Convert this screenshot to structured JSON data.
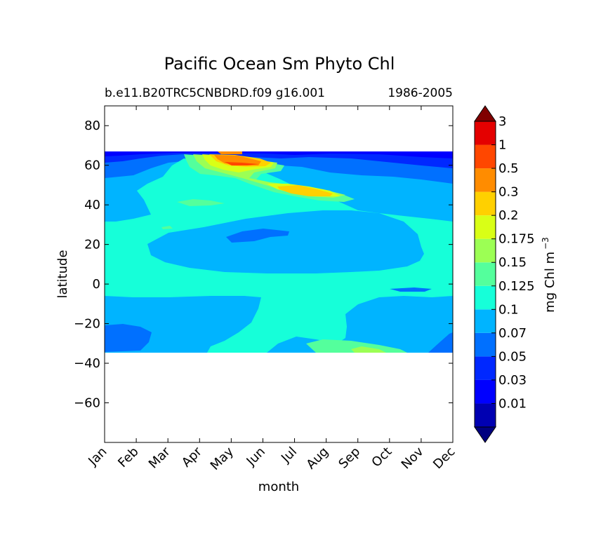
{
  "chart_data": {
    "type": "contour",
    "title": "Pacific Ocean Sm Phyto Chl",
    "subtitle_left": "b.e11.B20TRC5CNBDRD.f09 g16.001",
    "subtitle_right": "1986-2005",
    "xlabel": "month",
    "ylabel": "latitude",
    "x_ticks": [
      "Jan",
      "Feb",
      "Mar",
      "Apr",
      "May",
      "Jun",
      "Jul",
      "Aug",
      "Sep",
      "Oct",
      "Nov",
      "Dec"
    ],
    "y_ticks": [
      80,
      60,
      40,
      20,
      0,
      -20,
      -40,
      -60
    ],
    "y_tick_labels": [
      "80",
      "60",
      "40",
      "20",
      "0",
      "−20",
      "−40",
      "−60"
    ],
    "ylim": [
      -80,
      90
    ],
    "data_lat_range": [
      -34,
      67
    ],
    "colorbar": {
      "label": "mg Chl m",
      "label_exponent": "−3",
      "levels": [
        0.01,
        0.03,
        0.05,
        0.07,
        0.1,
        0.125,
        0.15,
        0.175,
        0.2,
        0.3,
        0.5,
        1,
        3
      ],
      "tick_labels": [
        "0.01",
        "0.03",
        "0.05",
        "0.07",
        "0.1",
        "0.125",
        "0.15",
        "0.175",
        "0.2",
        "0.3",
        "0.5",
        "1",
        "3"
      ],
      "colors": [
        "#000080",
        "#0000b2",
        "#0000ff",
        "#0028ff",
        "#0070ff",
        "#00b4ff",
        "#16ffd9",
        "#54ff9c",
        "#9cff54",
        "#d9ff16",
        "#ffd000",
        "#ff8c00",
        "#ff4700",
        "#e40000",
        "#800000"
      ],
      "extend": "both"
    }
  }
}
